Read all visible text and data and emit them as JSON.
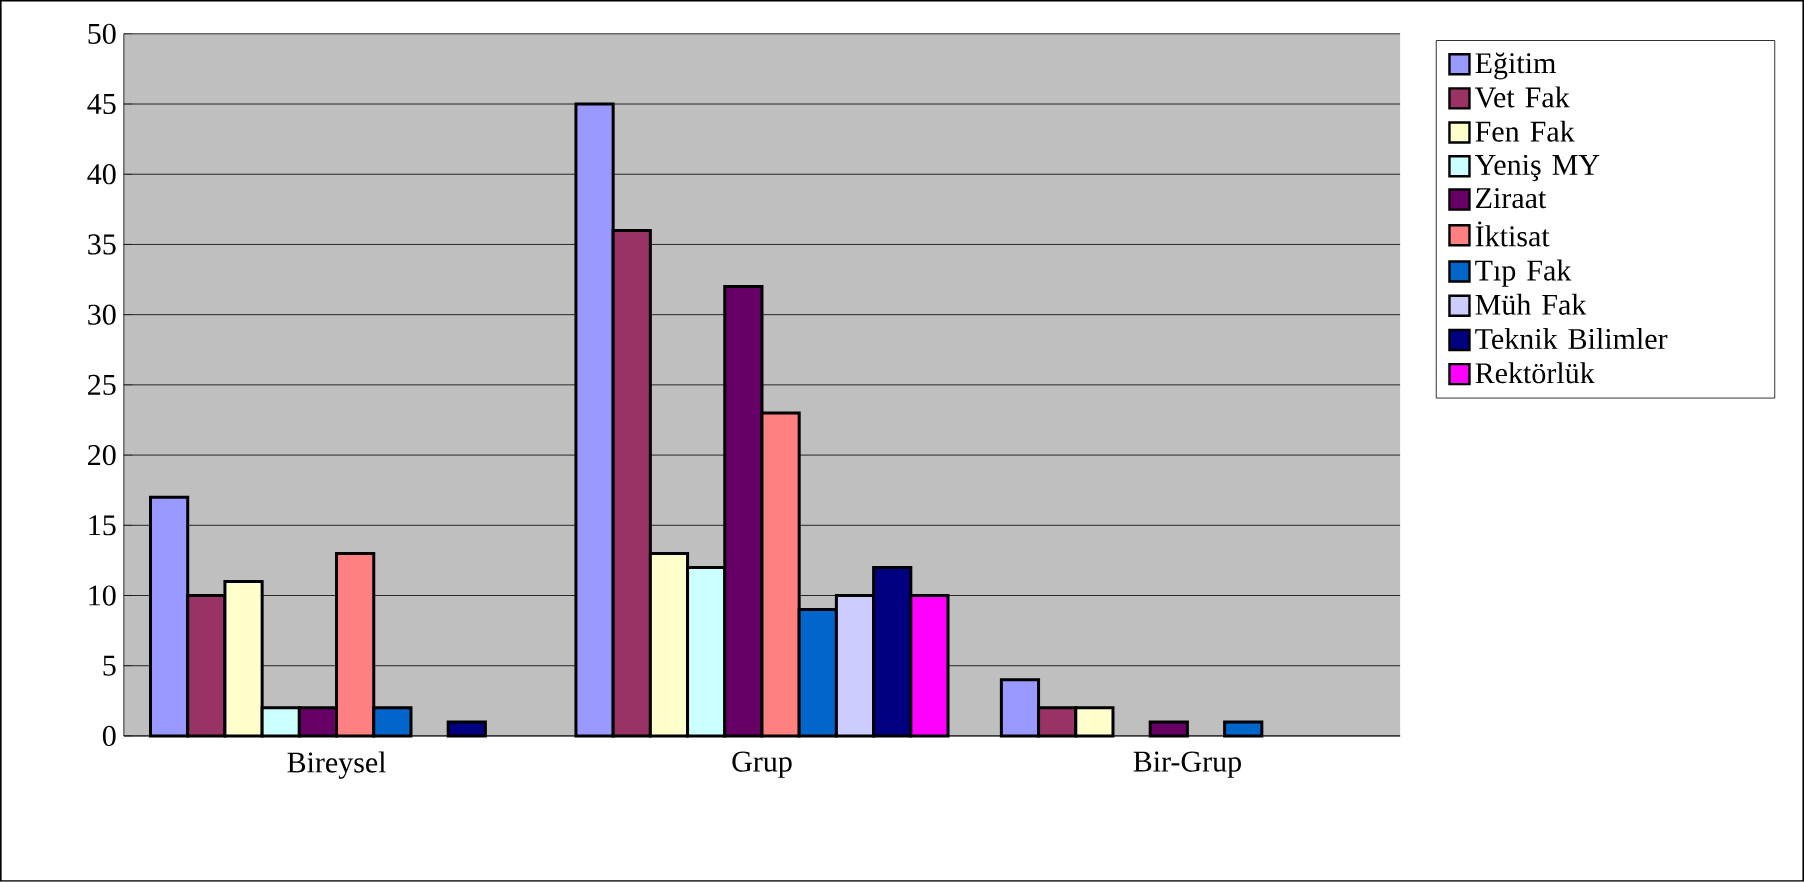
{
  "chart_data": {
    "type": "bar",
    "categories": [
      "Bireysel",
      "Grup",
      "Bir-Grup"
    ],
    "series": [
      {
        "name": "Eğitim",
        "color": "#9999ff",
        "values": [
          17,
          45,
          4
        ]
      },
      {
        "name": "Vet Fak",
        "color": "#993366",
        "values": [
          10,
          36,
          2
        ]
      },
      {
        "name": "Fen Fak",
        "color": "#ffffcc",
        "values": [
          11,
          13,
          2
        ]
      },
      {
        "name": "Yeniş MY",
        "color": "#ccffff",
        "values": [
          2,
          12,
          0
        ]
      },
      {
        "name": "Ziraat",
        "color": "#660066",
        "values": [
          2,
          32,
          1
        ]
      },
      {
        "name": "İktisat",
        "color": "#ff8080",
        "values": [
          13,
          23,
          0
        ]
      },
      {
        "name": "Tıp Fak",
        "color": "#0066cc",
        "values": [
          2,
          9,
          1
        ]
      },
      {
        "name": "Müh Fak",
        "color": "#ccccff",
        "values": [
          0,
          10,
          0
        ]
      },
      {
        "name": "Teknik Bilimler",
        "color": "#000080",
        "values": [
          1,
          12,
          0
        ]
      },
      {
        "name": "Rektörlük",
        "color": "#ff00ff",
        "values": [
          0,
          10,
          0
        ]
      }
    ],
    "ylim": [
      0,
      50
    ],
    "yticks": [
      0,
      5,
      10,
      15,
      20,
      25,
      30,
      35,
      40,
      45,
      50
    ],
    "grid": "y",
    "legend": "right"
  }
}
